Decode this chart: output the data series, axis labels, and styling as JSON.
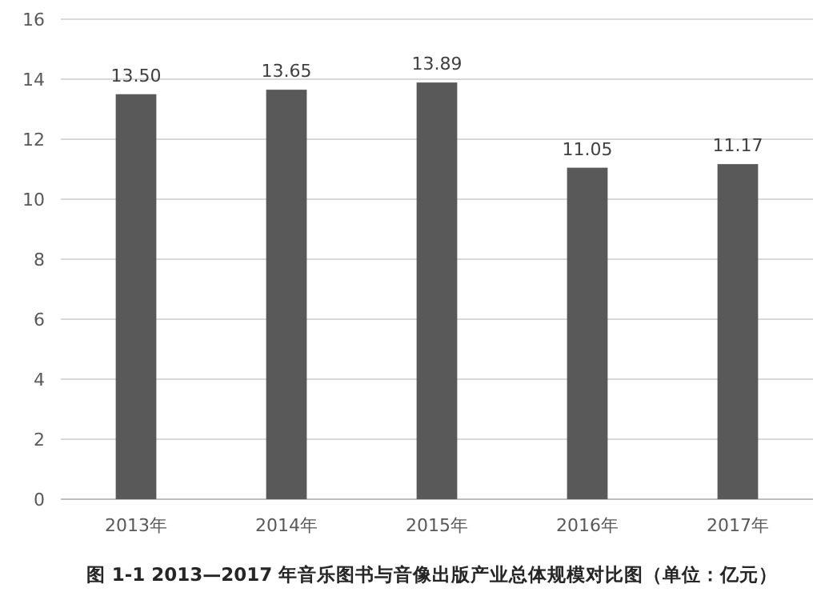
{
  "chart_data": {
    "type": "bar",
    "title": "图 1-1 2013—2017 年音乐图书与音像出版产业总体规模对比图（单位：亿元）",
    "categories": [
      "2013年",
      "2014年",
      "2015年",
      "2016年",
      "2017年"
    ],
    "values": [
      13.5,
      13.65,
      13.89,
      11.05,
      11.17
    ],
    "color": "#595959",
    "ylim": [
      0,
      16
    ],
    "yticks": [
      0,
      2,
      4,
      6,
      8,
      10,
      12,
      14,
      16
    ],
    "grid": "y",
    "data_labels": true,
    "value_labels": [
      "13.50",
      "13.65",
      "13.89",
      "11.05",
      "11.17"
    ]
  }
}
